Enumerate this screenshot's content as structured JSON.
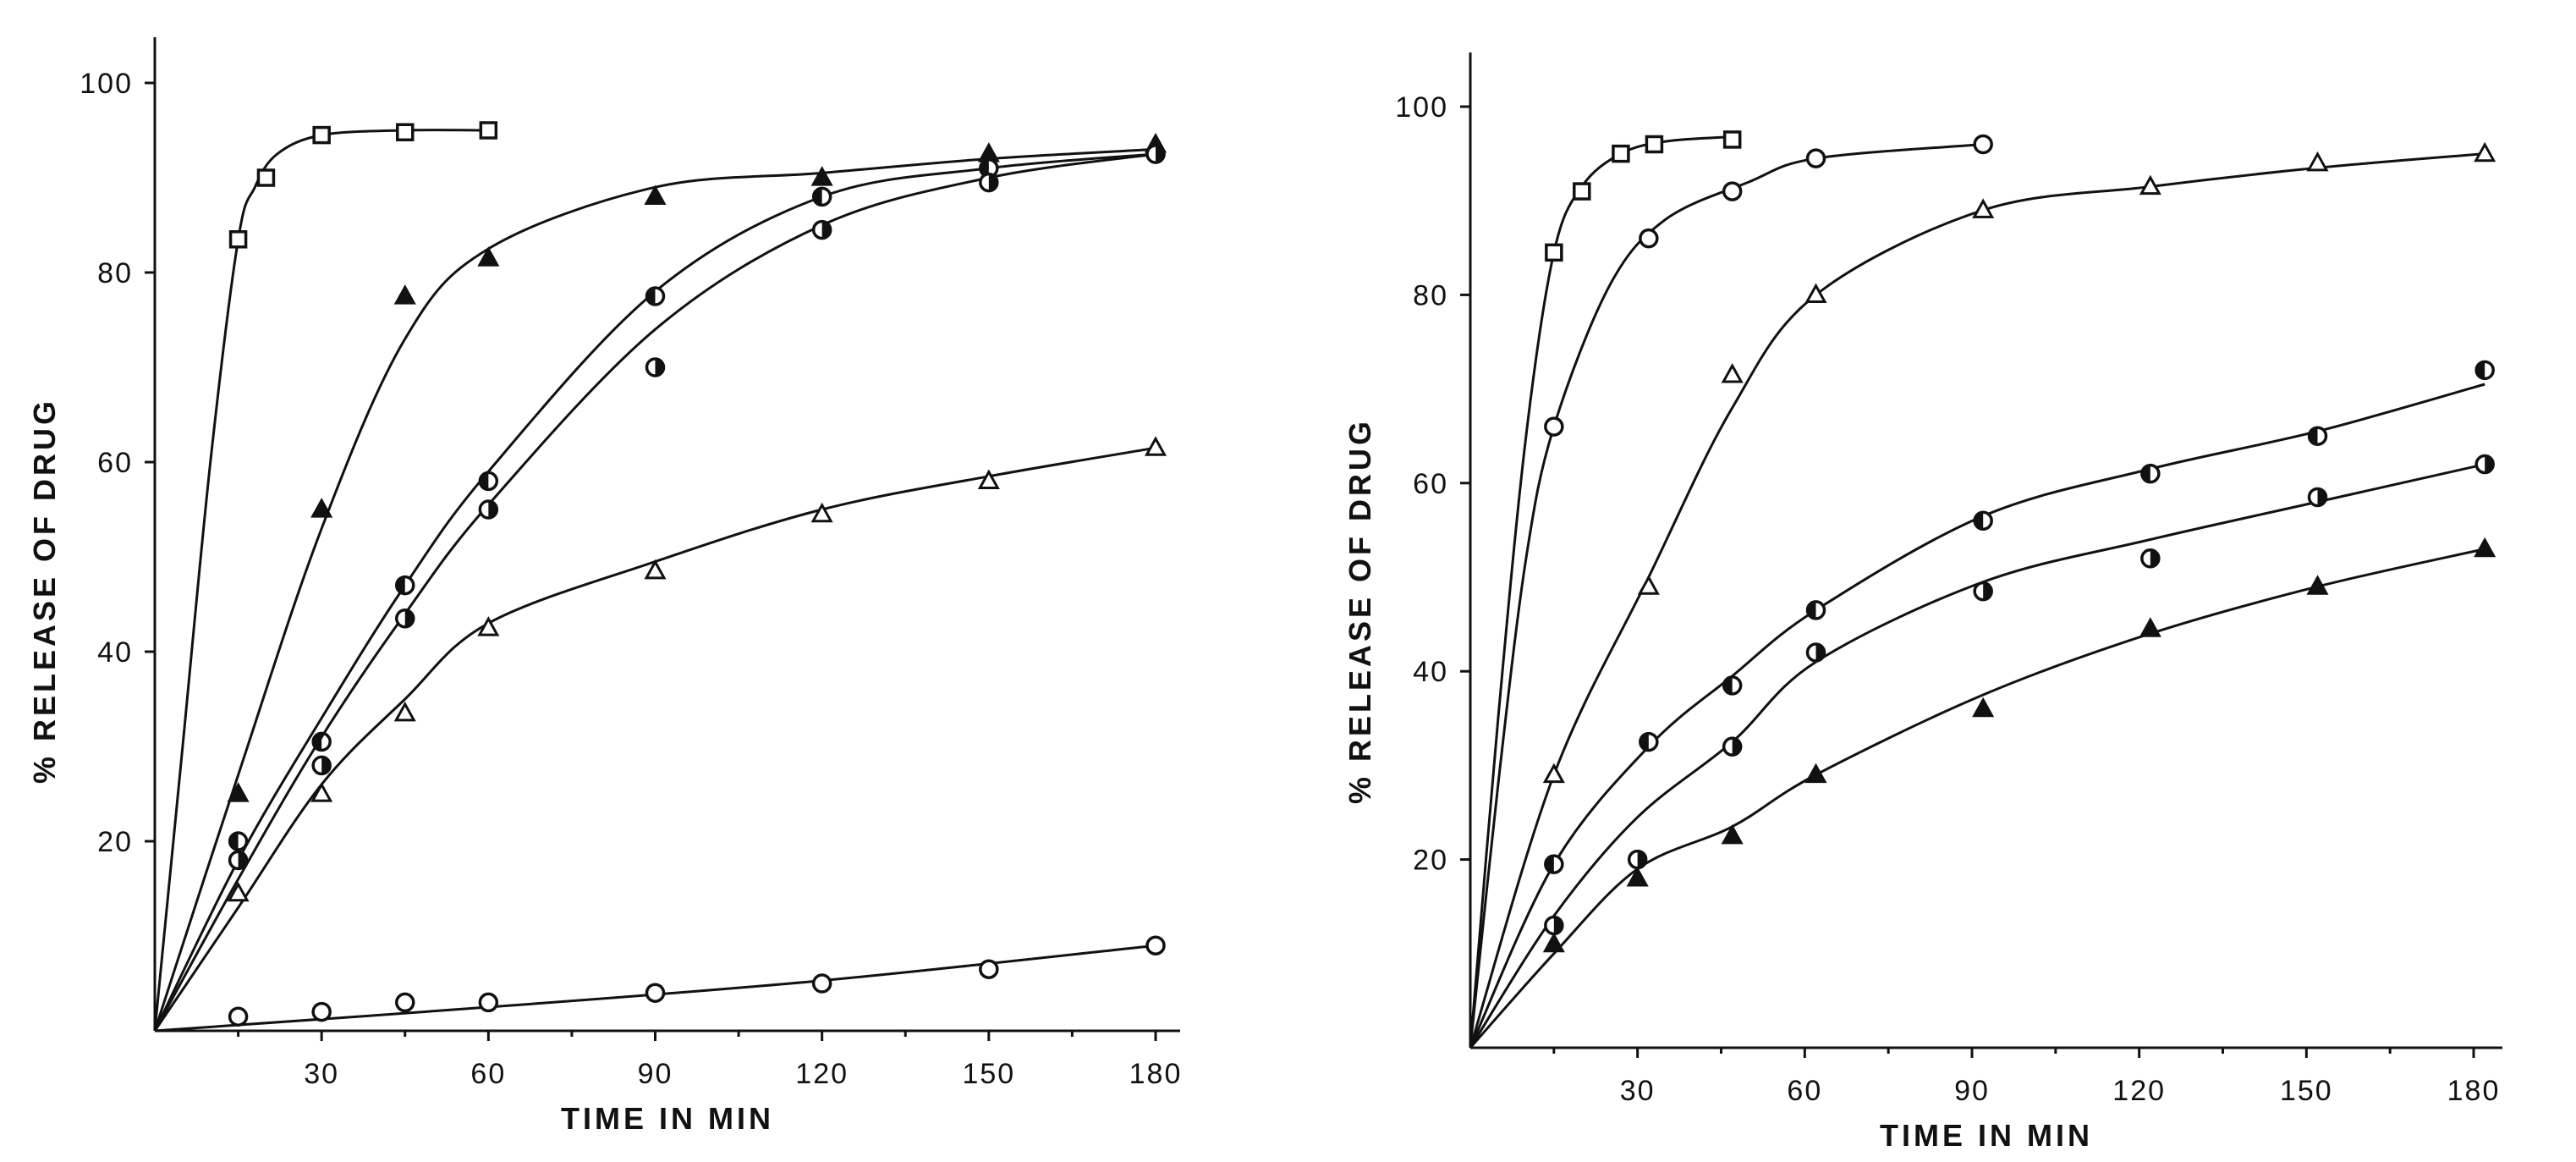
{
  "chart_data": [
    {
      "type": "line",
      "title": "",
      "xlabel": "TIME IN MIN",
      "ylabel": "% RELEASE OF DRUG",
      "xlim": [
        0,
        183
      ],
      "ylim": [
        0,
        100
      ],
      "xticks": [
        30,
        60,
        90,
        120,
        150,
        180
      ],
      "yticks": [
        20,
        40,
        60,
        80,
        100
      ],
      "grid": false,
      "legend": "none",
      "series": [
        {
          "marker": "square-open",
          "points": [
            [
              15,
              83.5
            ],
            [
              20,
              90
            ],
            [
              30,
              94.5
            ],
            [
              45,
              94.8
            ],
            [
              60,
              95
            ]
          ],
          "curve": [
            [
              0,
              0
            ],
            [
              5,
              30
            ],
            [
              10,
              60
            ],
            [
              15,
              83.5
            ],
            [
              18,
              89
            ],
            [
              22,
              92.5
            ],
            [
              30,
              94.5
            ],
            [
              45,
              95
            ],
            [
              60,
              95
            ]
          ]
        },
        {
          "marker": "triangle-filled",
          "points": [
            [
              15,
              25
            ],
            [
              30,
              55
            ],
            [
              45,
              77.5
            ],
            [
              60,
              81.5
            ],
            [
              90,
              88
            ],
            [
              120,
              90
            ],
            [
              150,
              92.5
            ],
            [
              180,
              93.5
            ]
          ],
          "curve": [
            [
              0,
              0
            ],
            [
              15,
              27
            ],
            [
              30,
              53
            ],
            [
              45,
              73
            ],
            [
              60,
              82.5
            ],
            [
              90,
              89
            ],
            [
              120,
              90.5
            ],
            [
              150,
              92
            ],
            [
              180,
              93
            ]
          ]
        },
        {
          "marker": "circle-left-half",
          "points": [
            [
              15,
              20
            ],
            [
              30,
              30.5
            ],
            [
              45,
              47
            ],
            [
              60,
              58
            ],
            [
              90,
              77.5
            ],
            [
              120,
              88
            ],
            [
              150,
              91
            ],
            [
              180,
              92.5
            ]
          ],
          "curve": [
            [
              0,
              0
            ],
            [
              15,
              18
            ],
            [
              30,
              33
            ],
            [
              45,
              47
            ],
            [
              60,
              59
            ],
            [
              90,
              78
            ],
            [
              120,
              88
            ],
            [
              150,
              91
            ],
            [
              180,
              92.5
            ]
          ]
        },
        {
          "marker": "circle-right-half",
          "points": [
            [
              15,
              18
            ],
            [
              30,
              28
            ],
            [
              45,
              43.5
            ],
            [
              60,
              55
            ],
            [
              90,
              70
            ],
            [
              120,
              84.5
            ],
            [
              150,
              89.5
            ],
            [
              180,
              92.5
            ]
          ],
          "curve": [
            [
              0,
              0
            ],
            [
              15,
              16
            ],
            [
              30,
              31
            ],
            [
              45,
              44
            ],
            [
              60,
              55.5
            ],
            [
              90,
              74
            ],
            [
              120,
              85
            ],
            [
              150,
              90
            ],
            [
              180,
              92.5
            ]
          ]
        },
        {
          "marker": "triangle-open",
          "points": [
            [
              15,
              14.5
            ],
            [
              30,
              25
            ],
            [
              45,
              33.5
            ],
            [
              60,
              42.5
            ],
            [
              90,
              48.5
            ],
            [
              120,
              54.5
            ],
            [
              150,
              58
            ],
            [
              180,
              61.5
            ]
          ],
          "curve": [
            [
              0,
              0
            ],
            [
              15,
              13
            ],
            [
              30,
              26
            ],
            [
              45,
              35
            ],
            [
              60,
              43
            ],
            [
              90,
              49.5
            ],
            [
              120,
              55
            ],
            [
              150,
              58.5
            ],
            [
              180,
              61.5
            ]
          ]
        },
        {
          "marker": "circle-open",
          "points": [
            [
              15,
              1.5
            ],
            [
              30,
              2
            ],
            [
              45,
              3
            ],
            [
              60,
              3
            ],
            [
              90,
              4
            ],
            [
              120,
              5
            ],
            [
              150,
              6.5
            ],
            [
              180,
              9
            ]
          ],
          "curve": [
            [
              0,
              0
            ],
            [
              60,
              2.5
            ],
            [
              120,
              5.3
            ],
            [
              180,
              9
            ]
          ]
        }
      ]
    },
    {
      "type": "line",
      "title": "",
      "xlabel": "TIME IN MIN",
      "ylabel": "% RELEASE OF DRUG",
      "xlim": [
        0,
        185
      ],
      "ylim": [
        0,
        105
      ],
      "xticks": [
        30,
        60,
        90,
        120,
        150,
        180
      ],
      "yticks": [
        20,
        40,
        60,
        80,
        100
      ],
      "grid": false,
      "legend": "none",
      "series": [
        {
          "marker": "square-open",
          "points": [
            [
              15,
              84.5
            ],
            [
              20,
              91
            ],
            [
              27,
              95
            ],
            [
              33,
              96
            ],
            [
              47,
              96.5
            ]
          ],
          "curve": [
            [
              0,
              0
            ],
            [
              5,
              35
            ],
            [
              10,
              65
            ],
            [
              15,
              84.5
            ],
            [
              20,
              91.5
            ],
            [
              27,
              95
            ],
            [
              35,
              96.3
            ],
            [
              47,
              96.8
            ]
          ]
        },
        {
          "marker": "circle-open",
          "points": [
            [
              15,
              66
            ],
            [
              32,
              86
            ],
            [
              47,
              91
            ],
            [
              62,
              94.5
            ],
            [
              92,
              96
            ]
          ],
          "curve": [
            [
              0,
              0
            ],
            [
              5,
              28
            ],
            [
              10,
              52
            ],
            [
              15,
              66
            ],
            [
              25,
              81
            ],
            [
              35,
              88
            ],
            [
              50,
              92
            ],
            [
              62,
              94.5
            ],
            [
              92,
              96
            ]
          ]
        },
        {
          "marker": "triangle-open",
          "points": [
            [
              15,
              29
            ],
            [
              32,
              49
            ],
            [
              47,
              71.5
            ],
            [
              62,
              80
            ],
            [
              92,
              89
            ],
            [
              122,
              91.5
            ],
            [
              152,
              94
            ],
            [
              182,
              95
            ]
          ],
          "curve": [
            [
              0,
              0
            ],
            [
              15,
              29
            ],
            [
              32,
              50
            ],
            [
              47,
              68
            ],
            [
              62,
              80
            ],
            [
              92,
              89
            ],
            [
              122,
              91.5
            ],
            [
              152,
              93.5
            ],
            [
              182,
              95
            ]
          ]
        },
        {
          "marker": "circle-left-half",
          "points": [
            [
              15,
              19.5
            ],
            [
              32,
              32.5
            ],
            [
              47,
              38.5
            ],
            [
              62,
              46.5
            ],
            [
              92,
              56
            ],
            [
              122,
              61
            ],
            [
              152,
              65
            ],
            [
              182,
              72
            ]
          ],
          "curve": [
            [
              0,
              0
            ],
            [
              15,
              19.5
            ],
            [
              32,
              32
            ],
            [
              47,
              39.5
            ],
            [
              62,
              46.5
            ],
            [
              92,
              56.5
            ],
            [
              122,
              61.5
            ],
            [
              152,
              65.5
            ],
            [
              182,
              70.5
            ]
          ]
        },
        {
          "marker": "circle-right-half",
          "points": [
            [
              15,
              13
            ],
            [
              30,
              20
            ],
            [
              47,
              32
            ],
            [
              62,
              42
            ],
            [
              92,
              48.5
            ],
            [
              122,
              52
            ],
            [
              152,
              58.5
            ],
            [
              182,
              62
            ]
          ],
          "curve": [
            [
              0,
              0
            ],
            [
              15,
              14
            ],
            [
              30,
              24.5
            ],
            [
              47,
              32.5
            ],
            [
              62,
              41
            ],
            [
              92,
              49.5
            ],
            [
              122,
              54
            ],
            [
              152,
              58
            ],
            [
              182,
              62
            ]
          ]
        },
        {
          "marker": "triangle-filled",
          "points": [
            [
              15,
              11
            ],
            [
              30,
              18
            ],
            [
              47,
              22.5
            ],
            [
              62,
              29
            ],
            [
              92,
              36
            ],
            [
              122,
              44.5
            ],
            [
              152,
              49
            ],
            [
              182,
              53
            ]
          ],
          "curve": [
            [
              0,
              0
            ],
            [
              15,
              10
            ],
            [
              30,
              19
            ],
            [
              47,
              23.5
            ],
            [
              62,
              29
            ],
            [
              92,
              37.5
            ],
            [
              122,
              44
            ],
            [
              152,
              49
            ],
            [
              182,
              53
            ]
          ]
        }
      ]
    }
  ]
}
